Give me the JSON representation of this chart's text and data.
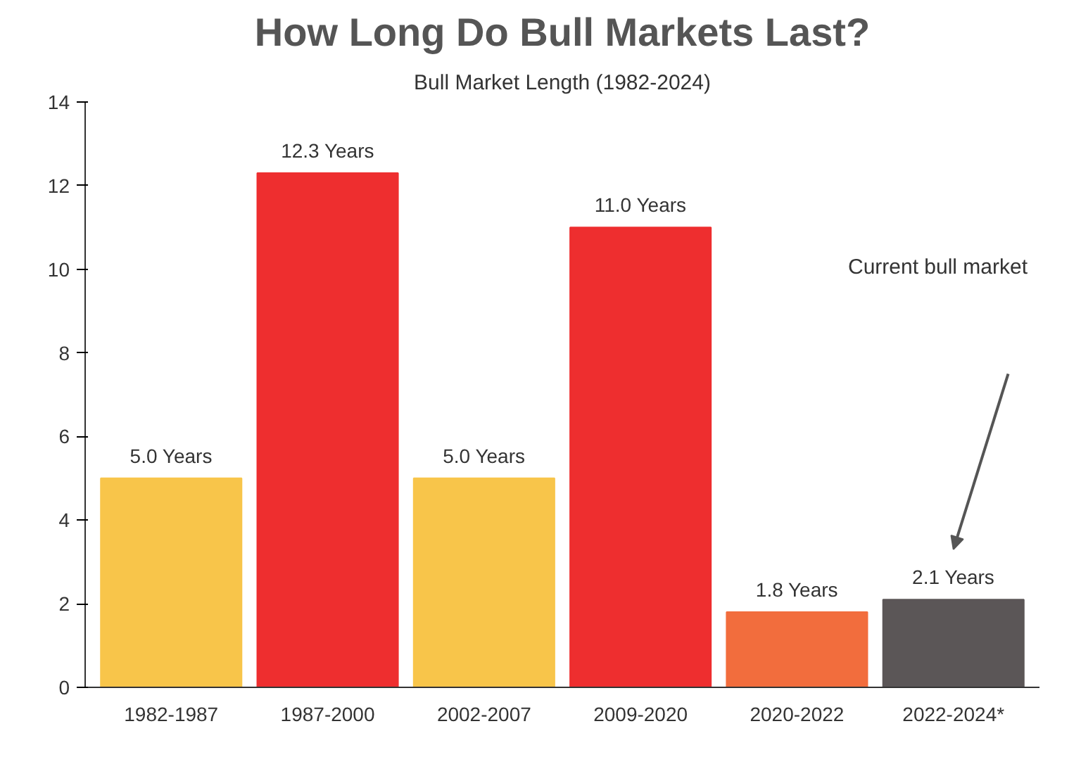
{
  "chart_data": {
    "type": "bar",
    "title": "How Long Do Bull Markets Last?",
    "subtitle": "Bull Market Length (1982-2024)",
    "categories": [
      "1982-1987",
      "1987-2000",
      "2002-2007",
      "2009-2020",
      "2020-2022",
      "2022-2024*"
    ],
    "values": [
      5.0,
      12.3,
      5.0,
      11.0,
      1.8,
      2.1
    ],
    "colors": [
      "#f8c54a",
      "#ee2e2f",
      "#f8c54a",
      "#ee2e2f",
      "#f26d3d",
      "#5b5657"
    ],
    "value_labels": [
      "5.0 Years",
      "12.3 Years",
      "5.0 Years",
      "11.0 Years",
      "1.8 Years",
      "2.1 Years"
    ],
    "ylim": [
      0,
      14
    ],
    "yticks": [
      0,
      2,
      4,
      6,
      8,
      10,
      12,
      14
    ],
    "grid": false,
    "annotations": [
      "Current bull market"
    ]
  }
}
